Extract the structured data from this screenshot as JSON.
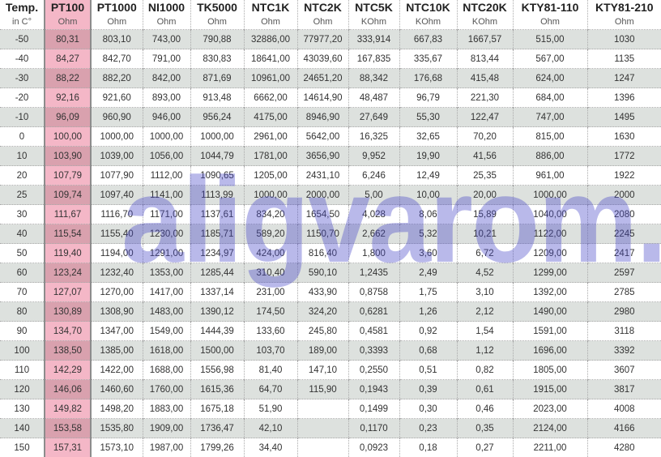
{
  "watermark": "aligvarom.hu",
  "colors": {
    "highlight_column": "#f4b7c7",
    "stripe": "#dde1de",
    "watermark": "#4646c8"
  },
  "columns": [
    {
      "name": "Temp.",
      "unit": "in C°"
    },
    {
      "name": "PT100",
      "unit": "Ohm"
    },
    {
      "name": "PT1000",
      "unit": "Ohm"
    },
    {
      "name": "NI1000",
      "unit": "Ohm"
    },
    {
      "name": "TK5000",
      "unit": "Ohm"
    },
    {
      "name": "NTC1K",
      "unit": "Ohm"
    },
    {
      "name": "NTC2K",
      "unit": "Ohm"
    },
    {
      "name": "NTC5K",
      "unit": "KOhm"
    },
    {
      "name": "NTC10K",
      "unit": "KOhm"
    },
    {
      "name": "NTC20K",
      "unit": "KOhm"
    },
    {
      "name": "KTY81-110",
      "unit": "Ohm"
    },
    {
      "name": "KTY81-210",
      "unit": "Ohm"
    }
  ],
  "rows": [
    [
      "-50",
      "80,31",
      "803,10",
      "743,00",
      "790,88",
      "32886,00",
      "77977,20",
      "333,914",
      "667,83",
      "1667,57",
      "515,00",
      "1030"
    ],
    [
      "-40",
      "84,27",
      "842,70",
      "791,00",
      "830,83",
      "18641,00",
      "43039,60",
      "167,835",
      "335,67",
      "813,44",
      "567,00",
      "1135"
    ],
    [
      "-30",
      "88,22",
      "882,20",
      "842,00",
      "871,69",
      "10961,00",
      "24651,20",
      "88,342",
      "176,68",
      "415,48",
      "624,00",
      "1247"
    ],
    [
      "-20",
      "92,16",
      "921,60",
      "893,00",
      "913,48",
      "6662,00",
      "14614,90",
      "48,487",
      "96,79",
      "221,30",
      "684,00",
      "1396"
    ],
    [
      "-10",
      "96,09",
      "960,90",
      "946,00",
      "956,24",
      "4175,00",
      "8946,90",
      "27,649",
      "55,30",
      "122,47",
      "747,00",
      "1495"
    ],
    [
      "0",
      "100,00",
      "1000,00",
      "1000,00",
      "1000,00",
      "2961,00",
      "5642,00",
      "16,325",
      "32,65",
      "70,20",
      "815,00",
      "1630"
    ],
    [
      "10",
      "103,90",
      "1039,00",
      "1056,00",
      "1044,79",
      "1781,00",
      "3656,90",
      "9,952",
      "19,90",
      "41,56",
      "886,00",
      "1772"
    ],
    [
      "20",
      "107,79",
      "1077,90",
      "1112,00",
      "1090,65",
      "1205,00",
      "2431,10",
      "6,246",
      "12,49",
      "25,35",
      "961,00",
      "1922"
    ],
    [
      "25",
      "109,74",
      "1097,40",
      "1141,00",
      "1113,99",
      "1000,00",
      "2000,00",
      "5,00",
      "10,00",
      "20,00",
      "1000,00",
      "2000"
    ],
    [
      "30",
      "111,67",
      "1116,70",
      "1171,00",
      "1137,61",
      "834,20",
      "1654,50",
      "4,028",
      "8,06",
      "15,89",
      "1040,00",
      "2080"
    ],
    [
      "40",
      "115,54",
      "1155,40",
      "1230,00",
      "1185,71",
      "589,20",
      "1150,70",
      "2,662",
      "5,32",
      "10,21",
      "1122,00",
      "2245"
    ],
    [
      "50",
      "119,40",
      "1194,00",
      "1291,00",
      "1234,97",
      "424,00",
      "816,40",
      "1,800",
      "3,60",
      "6,72",
      "1209,00",
      "2417"
    ],
    [
      "60",
      "123,24",
      "1232,40",
      "1353,00",
      "1285,44",
      "310,40",
      "590,10",
      "1,2435",
      "2,49",
      "4,52",
      "1299,00",
      "2597"
    ],
    [
      "70",
      "127,07",
      "1270,00",
      "1417,00",
      "1337,14",
      "231,00",
      "433,90",
      "0,8758",
      "1,75",
      "3,10",
      "1392,00",
      "2785"
    ],
    [
      "80",
      "130,89",
      "1308,90",
      "1483,00",
      "1390,12",
      "174,50",
      "324,20",
      "0,6281",
      "1,26",
      "2,12",
      "1490,00",
      "2980"
    ],
    [
      "90",
      "134,70",
      "1347,00",
      "1549,00",
      "1444,39",
      "133,60",
      "245,80",
      "0,4581",
      "0,92",
      "1,54",
      "1591,00",
      "3118"
    ],
    [
      "100",
      "138,50",
      "1385,00",
      "1618,00",
      "1500,00",
      "103,70",
      "189,00",
      "0,3393",
      "0,68",
      "1,12",
      "1696,00",
      "3392"
    ],
    [
      "110",
      "142,29",
      "1422,00",
      "1688,00",
      "1556,98",
      "81,40",
      "147,10",
      "0,2550",
      "0,51",
      "0,82",
      "1805,00",
      "3607"
    ],
    [
      "120",
      "146,06",
      "1460,60",
      "1760,00",
      "1615,36",
      "64,70",
      "115,90",
      "0,1943",
      "0,39",
      "0,61",
      "1915,00",
      "3817"
    ],
    [
      "130",
      "149,82",
      "1498,20",
      "1883,00",
      "1675,18",
      "51,90",
      "",
      "0,1499",
      "0,30",
      "0,46",
      "2023,00",
      "4008"
    ],
    [
      "140",
      "153,58",
      "1535,80",
      "1909,00",
      "1736,47",
      "42,10",
      "",
      "0,1170",
      "0,23",
      "0,35",
      "2124,00",
      "4166"
    ],
    [
      "150",
      "157,31",
      "1573,10",
      "1987,00",
      "1799,26",
      "34,40",
      "",
      "0,0923",
      "0,18",
      "0,27",
      "2211,00",
      "4280"
    ]
  ]
}
